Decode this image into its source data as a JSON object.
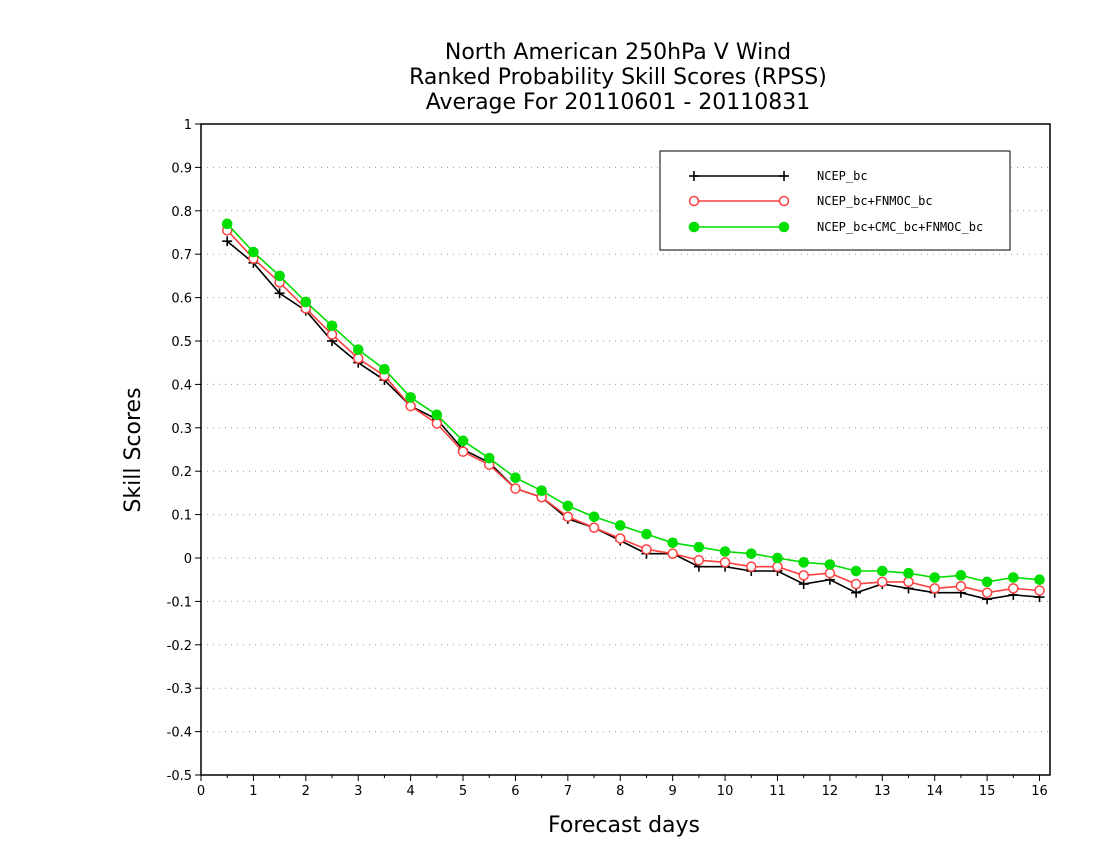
{
  "chart_data": {
    "type": "line",
    "title_lines": [
      "North American 250hPa V Wind",
      "Ranked Probability Skill Scores (RPSS)",
      "Average For 20110601 - 20110831"
    ],
    "xlabel": "Forecast days",
    "ylabel": "Skill Scores",
    "xlim": [
      0,
      16.2
    ],
    "ylim": [
      -0.5,
      1
    ],
    "xticks": [
      0,
      1,
      2,
      3,
      4,
      5,
      6,
      7,
      8,
      9,
      10,
      11,
      12,
      13,
      14,
      15,
      16
    ],
    "yticks": [
      -0.5,
      -0.4,
      -0.3,
      -0.2,
      -0.1,
      0,
      0.1,
      0.2,
      0.3,
      0.4,
      0.5,
      0.6,
      0.7,
      0.8,
      0.9,
      1
    ],
    "ytick_labels": [
      "-0.5",
      "-0.4",
      "-0.3",
      "-0.2",
      "-0.1",
      "0",
      "0.1",
      "0.2",
      "0.3",
      "0.4",
      "0.5",
      "0.6",
      "0.7",
      "0.8",
      "0.9",
      "1"
    ],
    "grid": "horizontal-dotted",
    "legend_position": "top-right",
    "x": [
      0.5,
      1,
      1.5,
      2,
      2.5,
      3,
      3.5,
      4,
      4.5,
      5,
      5.5,
      6,
      6.5,
      7,
      7.5,
      8,
      8.5,
      9,
      9.5,
      10,
      10.5,
      11,
      11.5,
      12,
      12.5,
      13,
      13.5,
      14,
      14.5,
      15,
      15.5,
      16
    ],
    "series": [
      {
        "name": "NCEP_bc",
        "color": "#000000",
        "marker": "plus",
        "values": [
          0.73,
          0.68,
          0.61,
          0.57,
          0.5,
          0.45,
          0.41,
          0.35,
          0.32,
          0.25,
          0.22,
          0.16,
          0.14,
          0.09,
          0.07,
          0.04,
          0.01,
          0.01,
          -0.02,
          -0.02,
          -0.03,
          -0.03,
          -0.06,
          -0.05,
          -0.08,
          -0.06,
          -0.07,
          -0.08,
          -0.08,
          -0.095,
          -0.085,
          -0.09
        ]
      },
      {
        "name": "NCEP_bc+FNMOC_bc",
        "color": "#ff4040",
        "marker": "open-circle",
        "values": [
          0.755,
          0.69,
          0.635,
          0.575,
          0.515,
          0.46,
          0.42,
          0.35,
          0.31,
          0.245,
          0.215,
          0.16,
          0.14,
          0.095,
          0.07,
          0.045,
          0.02,
          0.01,
          -0.005,
          -0.01,
          -0.02,
          -0.02,
          -0.04,
          -0.035,
          -0.06,
          -0.055,
          -0.055,
          -0.07,
          -0.065,
          -0.08,
          -0.07,
          -0.075
        ]
      },
      {
        "name": "NCEP_bc+CMC_bc+FNMOC_bc",
        "color": "#00dd00",
        "marker": "filled-circle",
        "values": [
          0.77,
          0.705,
          0.65,
          0.59,
          0.535,
          0.48,
          0.435,
          0.37,
          0.33,
          0.27,
          0.23,
          0.185,
          0.155,
          0.12,
          0.095,
          0.075,
          0.055,
          0.035,
          0.025,
          0.015,
          0.01,
          0.0,
          -0.01,
          -0.015,
          -0.03,
          -0.03,
          -0.035,
          -0.045,
          -0.04,
          -0.055,
          -0.045,
          -0.05
        ]
      }
    ]
  }
}
